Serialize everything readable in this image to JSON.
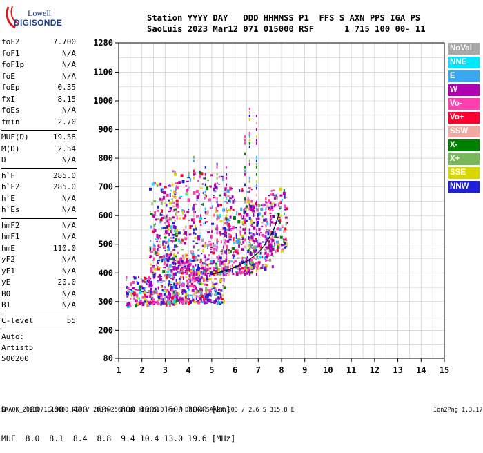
{
  "logo": {
    "top": "Lowell",
    "bottom": "DIGISONDE"
  },
  "header": {
    "line1": "Station YYYY DAY   DDD HHMMSS P1  FFS S AXN PPS IGA PS",
    "line2": "SaoLuis 2023 Mar12 071 015000 RSF      1 715 100 00- 11"
  },
  "params": [
    {
      "name": "foF2",
      "value": "7.700"
    },
    {
      "name": "foF1",
      "value": "N/A"
    },
    {
      "name": "foF1p",
      "value": "N/A"
    },
    {
      "name": "foE",
      "value": "N/A"
    },
    {
      "name": "foEp",
      "value": "0.35"
    },
    {
      "name": "fxI",
      "value": "8.15"
    },
    {
      "name": "foEs",
      "value": "N/A"
    },
    {
      "name": "fmin",
      "value": "2.70"
    },
    {
      "sep": true
    },
    {
      "name": "MUF(D)",
      "value": "19.58"
    },
    {
      "name": "M(D)",
      "value": "2.54"
    },
    {
      "name": "D",
      "value": "N/A"
    },
    {
      "sep": true
    },
    {
      "name": "h`F",
      "value": "285.0"
    },
    {
      "name": "h`F2",
      "value": "285.0"
    },
    {
      "name": "h`E",
      "value": "N/A"
    },
    {
      "name": "h`Es",
      "value": "N/A"
    },
    {
      "sep": true
    },
    {
      "name": "hmF2",
      "value": "N/A"
    },
    {
      "name": "hmF1",
      "value": "N/A"
    },
    {
      "name": "hmE",
      "value": "110.0"
    },
    {
      "name": "yF2",
      "value": "N/A"
    },
    {
      "name": "yF1",
      "value": "N/A"
    },
    {
      "name": "yE",
      "value": "20.0"
    },
    {
      "name": "B0",
      "value": "N/A"
    },
    {
      "name": "B1",
      "value": "N/A"
    },
    {
      "sep": true
    },
    {
      "name": "C-level",
      "value": "55"
    },
    {
      "sep": true
    }
  ],
  "auto": {
    "line1": "Auto:",
    "line2": "Artist5",
    "line3": "500200"
  },
  "legend": [
    {
      "label": "NoVal",
      "color": "#a8a8a8"
    },
    {
      "label": "NNE",
      "color": "#00e8ff"
    },
    {
      "label": "E",
      "color": "#3aa8f0"
    },
    {
      "label": "W",
      "color": "#b000b0"
    },
    {
      "label": "Vo-",
      "color": "#ff40b0"
    },
    {
      "label": "Vo+",
      "color": "#ff0030"
    },
    {
      "label": "SSW",
      "color": "#f0a8a0"
    },
    {
      "label": "X-",
      "color": "#008000"
    },
    {
      "label": "X+",
      "color": "#78b858"
    },
    {
      "label": "SSE",
      "color": "#d8d800"
    },
    {
      "label": "NNW",
      "color": "#2020d8"
    }
  ],
  "muf_table": {
    "line1": "D    100  200  400  600  800 1000 1500 3000 [km]",
    "line2": "MUF  8.0  8.1  8.4  8.8  9.4 10.4 13.0 19.6 [MHz]"
  },
  "footer": {
    "left": "SAA0K_2023071015000.RSF / 280fx256h 50 kHz 5.0 km / DPS-4 SAA0K 903 / 2.6 S 315.8 E",
    "right": "Ion2Png 1.3.17"
  },
  "chart_data": {
    "type": "scatter",
    "x_ticks": [
      "1",
      "2",
      "3",
      "4",
      "5",
      "6",
      "7",
      "8",
      "9",
      "10",
      "11",
      "12",
      "13",
      "14",
      "15"
    ],
    "y_ticks": [
      "80",
      "200",
      "300",
      "400",
      "500",
      "600",
      "700",
      "800",
      "900",
      "1000",
      "1100",
      "1280"
    ],
    "xlim": [
      1,
      15
    ],
    "ylim": [
      80,
      1280
    ],
    "grid": true,
    "legend_position": "right",
    "trace": {
      "x": [
        5.0,
        5.5,
        6.0,
        6.5,
        7.0,
        7.3,
        7.6,
        7.8,
        7.9
      ],
      "y": [
        395,
        405,
        420,
        440,
        470,
        500,
        540,
        580,
        610
      ]
    },
    "clusters": [
      {
        "x0": 1.3,
        "x1": 2.4,
        "y0": 290,
        "y1": 390,
        "n": 120
      },
      {
        "x0": 2.3,
        "x1": 3.5,
        "y0": 295,
        "y1": 720,
        "n": 380
      },
      {
        "x0": 3.0,
        "x1": 5.5,
        "y0": 300,
        "y1": 450,
        "n": 420
      },
      {
        "x0": 3.3,
        "x1": 5.8,
        "y0": 400,
        "y1": 760,
        "n": 330
      },
      {
        "x0": 5.5,
        "x1": 6.7,
        "y0": 400,
        "y1": 700,
        "n": 220
      },
      {
        "x0": 6.6,
        "x1": 7.6,
        "y0": 420,
        "y1": 650,
        "n": 170
      },
      {
        "x0": 7.4,
        "x1": 8.2,
        "y0": 480,
        "y1": 700,
        "n": 120
      }
    ]
  }
}
